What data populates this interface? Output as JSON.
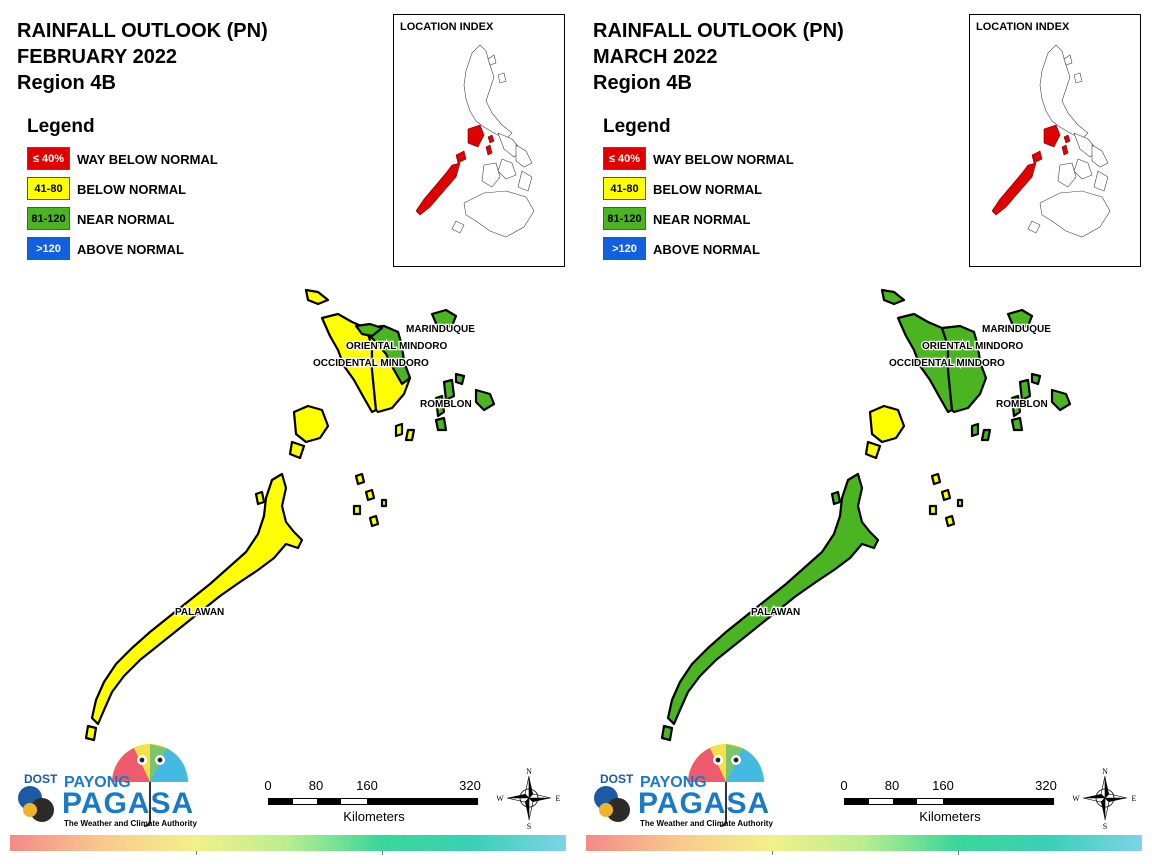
{
  "panels": [
    {
      "title_lines": [
        "RAINFALL OUTLOOK (PN)",
        "FEBRUARY 2022",
        "Region 4B"
      ],
      "region_fill_colors": {
        "palawan": "#ffff00",
        "occidental_mindoro": "#ffff00",
        "oriental_mindoro": "#ffff00",
        "mindoro_east_band": "#4ab520",
        "marinduque": "#4ab520",
        "romblon": "#4ab520",
        "calamian": "#ffff00",
        "cuyo": "#ffff00"
      }
    },
    {
      "title_lines": [
        "RAINFALL OUTLOOK (PN)",
        "MARCH 2022",
        "Region 4B"
      ],
      "region_fill_colors": {
        "palawan": "#4ab520",
        "occidental_mindoro": "#4ab520",
        "oriental_mindoro": "#4ab520",
        "mindoro_east_band": "#4ab520",
        "marinduque": "#4ab520",
        "romblon": "#4ab520",
        "calamian": "#ffff00",
        "cuyo": "#ffff00"
      }
    }
  ],
  "legend": {
    "title": "Legend",
    "items": [
      {
        "swatch_text": "≤ 40%",
        "label": "WAY BELOW NORMAL",
        "color": "#e00000",
        "text_color": "#ffffff"
      },
      {
        "swatch_text": "41-80",
        "label": "BELOW NORMAL",
        "color": "#ffff00",
        "text_color": "#000000"
      },
      {
        "swatch_text": "81-120",
        "label": "NEAR NORMAL",
        "color": "#4ab520",
        "text_color": "#000000"
      },
      {
        "swatch_text": ">120",
        "label": "ABOVE NORMAL",
        "color": "#1060e0",
        "text_color": "#ffffff"
      }
    ]
  },
  "location_index": {
    "title": "LOCATION INDEX",
    "highlight_color": "#e00000"
  },
  "map_labels": {
    "marinduque": "MARINDUQUE",
    "oriental_mindoro": "ORIENTAL MINDORO",
    "occidental_mindoro": "OCCIDENTAL MINDORO",
    "romblon": "ROMBLON",
    "palawan": "PALAWAN"
  },
  "scale": {
    "ticks": [
      "0",
      "80",
      "160",
      "320"
    ],
    "unit": "Kilometers"
  },
  "compass": {
    "n": "N",
    "s": "S",
    "e": "E",
    "w": "W"
  },
  "logo": {
    "dost": "DOST",
    "payong": "PAYONG",
    "pagasa": "PAGASA",
    "tagline": "The Weather and Climate Authority"
  }
}
